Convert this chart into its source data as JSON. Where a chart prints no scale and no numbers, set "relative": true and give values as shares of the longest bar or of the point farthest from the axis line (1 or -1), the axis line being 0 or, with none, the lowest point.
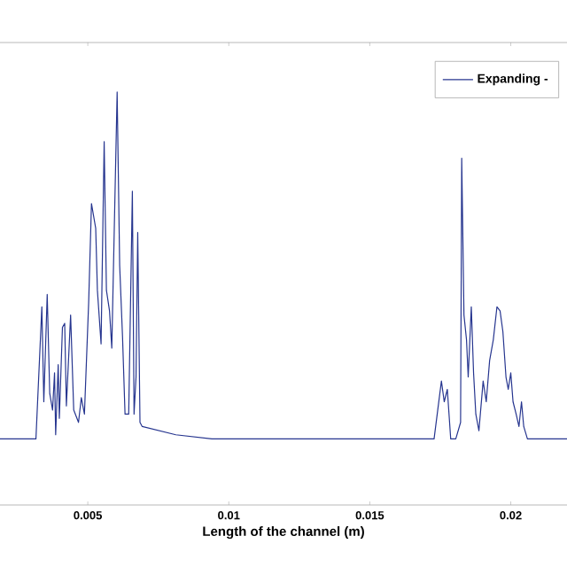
{
  "chart_data": {
    "type": "line",
    "relative": true,
    "xlabel": "Length of the channel (m)",
    "xlim": [
      0.00176,
      0.02212
    ],
    "xticks": [
      0.005,
      0.01,
      0.015,
      0.02
    ],
    "legend": "top right",
    "series": [
      {
        "name": "Expanding -",
        "color": "#26358f",
        "x": [
          0.00176,
          0.0031,
          0.00316,
          0.00337,
          0.00344,
          0.00356,
          0.00365,
          0.00375,
          0.00382,
          0.00386,
          0.00395,
          0.00399,
          0.0041,
          0.00418,
          0.00424,
          0.00439,
          0.0045,
          0.00467,
          0.00477,
          0.00488,
          0.00503,
          0.00513,
          0.00528,
          0.00534,
          0.00547,
          0.00558,
          0.00566,
          0.00577,
          0.00585,
          0.00604,
          0.00613,
          0.00623,
          0.00632,
          0.00645,
          0.00658,
          0.00664,
          0.00671,
          0.00677,
          0.00685,
          0.00693,
          0.00812,
          0.0094,
          0.01724,
          0.01728,
          0.01754,
          0.01764,
          0.01775,
          0.01787,
          0.01805,
          0.01822,
          0.01826,
          0.01834,
          0.01843,
          0.01849,
          0.0186,
          0.01868,
          0.01876,
          0.01887,
          0.01902,
          0.01913,
          0.01925,
          0.01938,
          0.01951,
          0.01962,
          0.01972,
          0.01983,
          0.01991,
          0.02,
          0.02008,
          0.02019,
          0.02029,
          0.02038,
          0.02046,
          0.02059,
          0.02212
        ],
        "values": [
          0.16,
          0.16,
          0.16,
          0.48,
          0.25,
          0.51,
          0.27,
          0.23,
          0.32,
          0.17,
          0.34,
          0.21,
          0.43,
          0.44,
          0.24,
          0.46,
          0.23,
          0.2,
          0.26,
          0.22,
          0.49,
          0.73,
          0.67,
          0.52,
          0.39,
          0.88,
          0.52,
          0.47,
          0.38,
          1.0,
          0.58,
          0.41,
          0.22,
          0.22,
          0.76,
          0.22,
          0.31,
          0.66,
          0.2,
          0.19,
          0.17,
          0.16,
          0.16,
          0.16,
          0.3,
          0.25,
          0.28,
          0.16,
          0.16,
          0.2,
          0.84,
          0.46,
          0.4,
          0.31,
          0.48,
          0.32,
          0.22,
          0.18,
          0.3,
          0.25,
          0.35,
          0.4,
          0.48,
          0.47,
          0.42,
          0.31,
          0.28,
          0.32,
          0.25,
          0.22,
          0.19,
          0.25,
          0.19,
          0.16,
          0.16
        ]
      }
    ]
  }
}
